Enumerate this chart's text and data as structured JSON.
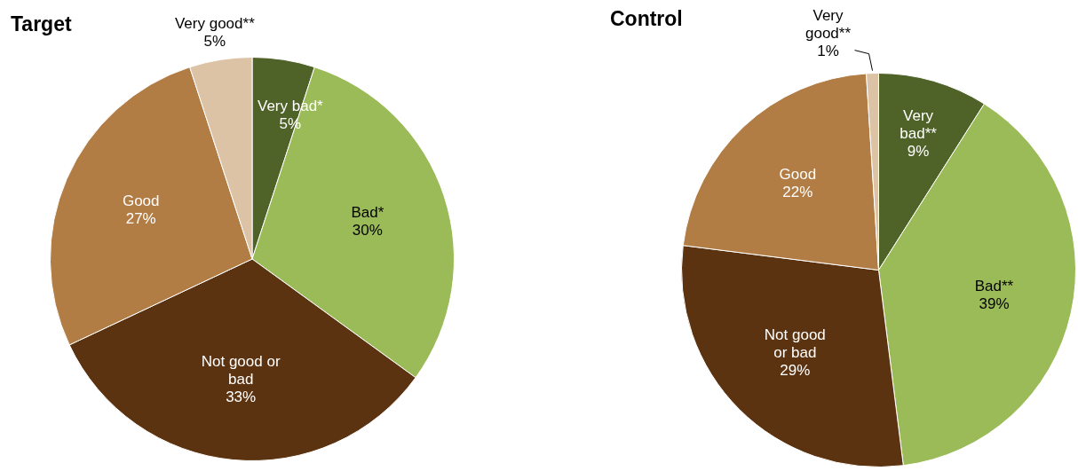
{
  "chart_data": [
    {
      "type": "pie",
      "title": "Target",
      "categories": [
        "Very bad*",
        "Bad*",
        "Not good or bad",
        "Good",
        "Very good**"
      ],
      "values": [
        5,
        30,
        33,
        27,
        5
      ],
      "value_labels": [
        "5%",
        "30%",
        "33%",
        "27%",
        "5%"
      ],
      "colors": [
        "#4f6228",
        "#9bbb59",
        "#5c3311",
        "#b27c45",
        "#dcc3a6"
      ]
    },
    {
      "type": "pie",
      "title": "Control",
      "categories": [
        "Very bad**",
        "Bad**",
        "Not good or bad",
        "Good",
        "Very good**"
      ],
      "values": [
        9,
        39,
        29,
        22,
        1
      ],
      "value_labels": [
        "9%",
        "39%",
        "29%",
        "22%",
        "1%"
      ],
      "colors": [
        "#4f6228",
        "#9bbb59",
        "#5c3311",
        "#b27c45",
        "#dcc3a6"
      ]
    }
  ]
}
